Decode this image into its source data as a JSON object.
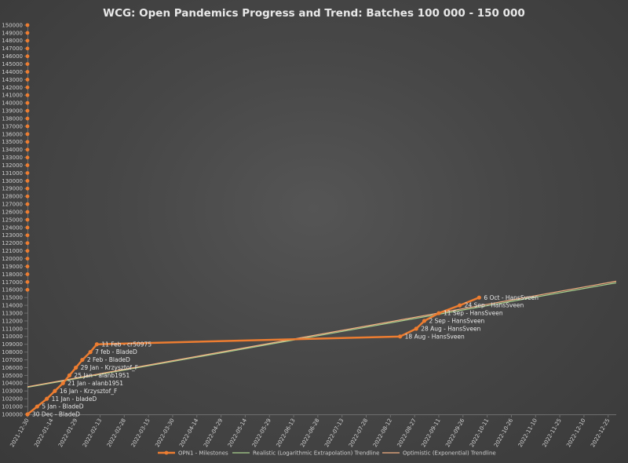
{
  "chart_data": {
    "type": "line",
    "title": "WCG: Open Pandemics Progress and Trend: Batches 100 000 - 150 000",
    "ylim": [
      100000,
      150000
    ],
    "y_ticks": [
      100000,
      101000,
      102000,
      103000,
      104000,
      105000,
      106000,
      107000,
      108000,
      109000,
      110000,
      111000,
      112000,
      113000,
      114000,
      115000,
      116000,
      117000,
      118000,
      119000,
      120000,
      121000,
      122000,
      123000,
      124000,
      125000,
      126000,
      127000,
      128000,
      129000,
      130000,
      131000,
      132000,
      133000,
      134000,
      135000,
      136000,
      137000,
      138000,
      139000,
      140000,
      141000,
      142000,
      143000,
      144000,
      145000,
      146000,
      147000,
      148000,
      149000,
      150000
    ],
    "x_range": [
      "2021-12-30",
      "2022-12-30"
    ],
    "x_ticks": [
      "2021-12-30",
      "2022-01-14",
      "2022-01-29",
      "2022-02-13",
      "2022-02-28",
      "2022-03-15",
      "2022-03-30",
      "2022-04-14",
      "2022-04-29",
      "2022-05-14",
      "2022-05-29",
      "2022-06-13",
      "2022-06-28",
      "2022-07-13",
      "2022-07-28",
      "2022-08-12",
      "2022-08-27",
      "2022-09-11",
      "2022-09-26",
      "2022-10-11",
      "2022-10-26",
      "2022-11-10",
      "2022-11-25",
      "2022-12-10",
      "2022-12-25"
    ],
    "grid": false,
    "legend_position": "bottom",
    "series": [
      {
        "name": "OPN1 - Milestones",
        "color": "#ed7d31",
        "points": [
          {
            "x": "2021-12-30",
            "y": 100000,
            "label": "30 Dec - BladeD"
          },
          {
            "x": "2022-01-05",
            "y": 101000,
            "label": "5 Jan - BladeD"
          },
          {
            "x": "2022-01-11",
            "y": 102000,
            "label": "11 Jan - bladeD"
          },
          {
            "x": "2022-01-16",
            "y": 103000,
            "label": "16 Jan - Krzysztof_F"
          },
          {
            "x": "2022-01-21",
            "y": 104000,
            "label": "21 Jan - alanb1951"
          },
          {
            "x": "2022-01-25",
            "y": 105000,
            "label": "25 Jan - alanb1951"
          },
          {
            "x": "2022-01-29",
            "y": 106000,
            "label": "29 Jan - Krzysztof_F"
          },
          {
            "x": "2022-02-02",
            "y": 107000,
            "label": "2 Feb - BladeD"
          },
          {
            "x": "2022-02-07",
            "y": 108000,
            "label": "7 feb - BladeD"
          },
          {
            "x": "2022-02-11",
            "y": 109000,
            "label": "11 Feb - cr50975"
          },
          {
            "x": "2022-08-18",
            "y": 110000,
            "label": "18 Aug - HansSveen"
          },
          {
            "x": "2022-08-28",
            "y": 111000,
            "label": "28 Aug - HansSveen"
          },
          {
            "x": "2022-09-02",
            "y": 112000,
            "label": "2 Sep - HansSveen"
          },
          {
            "x": "2022-09-11",
            "y": 113000,
            "label": "11 Sep - HansSveen"
          },
          {
            "x": "2022-09-24",
            "y": 114000,
            "label": "24 Sep - HansSveen"
          },
          {
            "x": "2022-10-06",
            "y": 115000,
            "label": "6 Oct - HansSveen"
          }
        ],
        "y_axis_markers": [
          116000,
          117000,
          118000,
          119000,
          120000,
          121000,
          122000,
          123000,
          124000,
          125000,
          126000,
          127000,
          128000,
          129000,
          130000,
          131000,
          132000,
          133000,
          134000,
          135000,
          136000,
          137000,
          138000,
          139000,
          140000,
          141000,
          142000,
          143000,
          144000,
          145000,
          146000,
          147000,
          148000,
          149000,
          150000
        ]
      },
      {
        "name": "Realistic (Logarithmic Extrapolation) Trendline",
        "color": "#a9d18e",
        "points": [
          {
            "x": "2021-12-30",
            "y": 103480
          },
          {
            "x": "2022-12-30",
            "y": 116900
          }
        ]
      },
      {
        "name": "Optimistic (Exponential) Trendline",
        "color": "#f4b183",
        "points": [
          {
            "x": "2021-12-30",
            "y": 103550
          },
          {
            "x": "2022-12-30",
            "y": 117100
          }
        ]
      }
    ]
  }
}
